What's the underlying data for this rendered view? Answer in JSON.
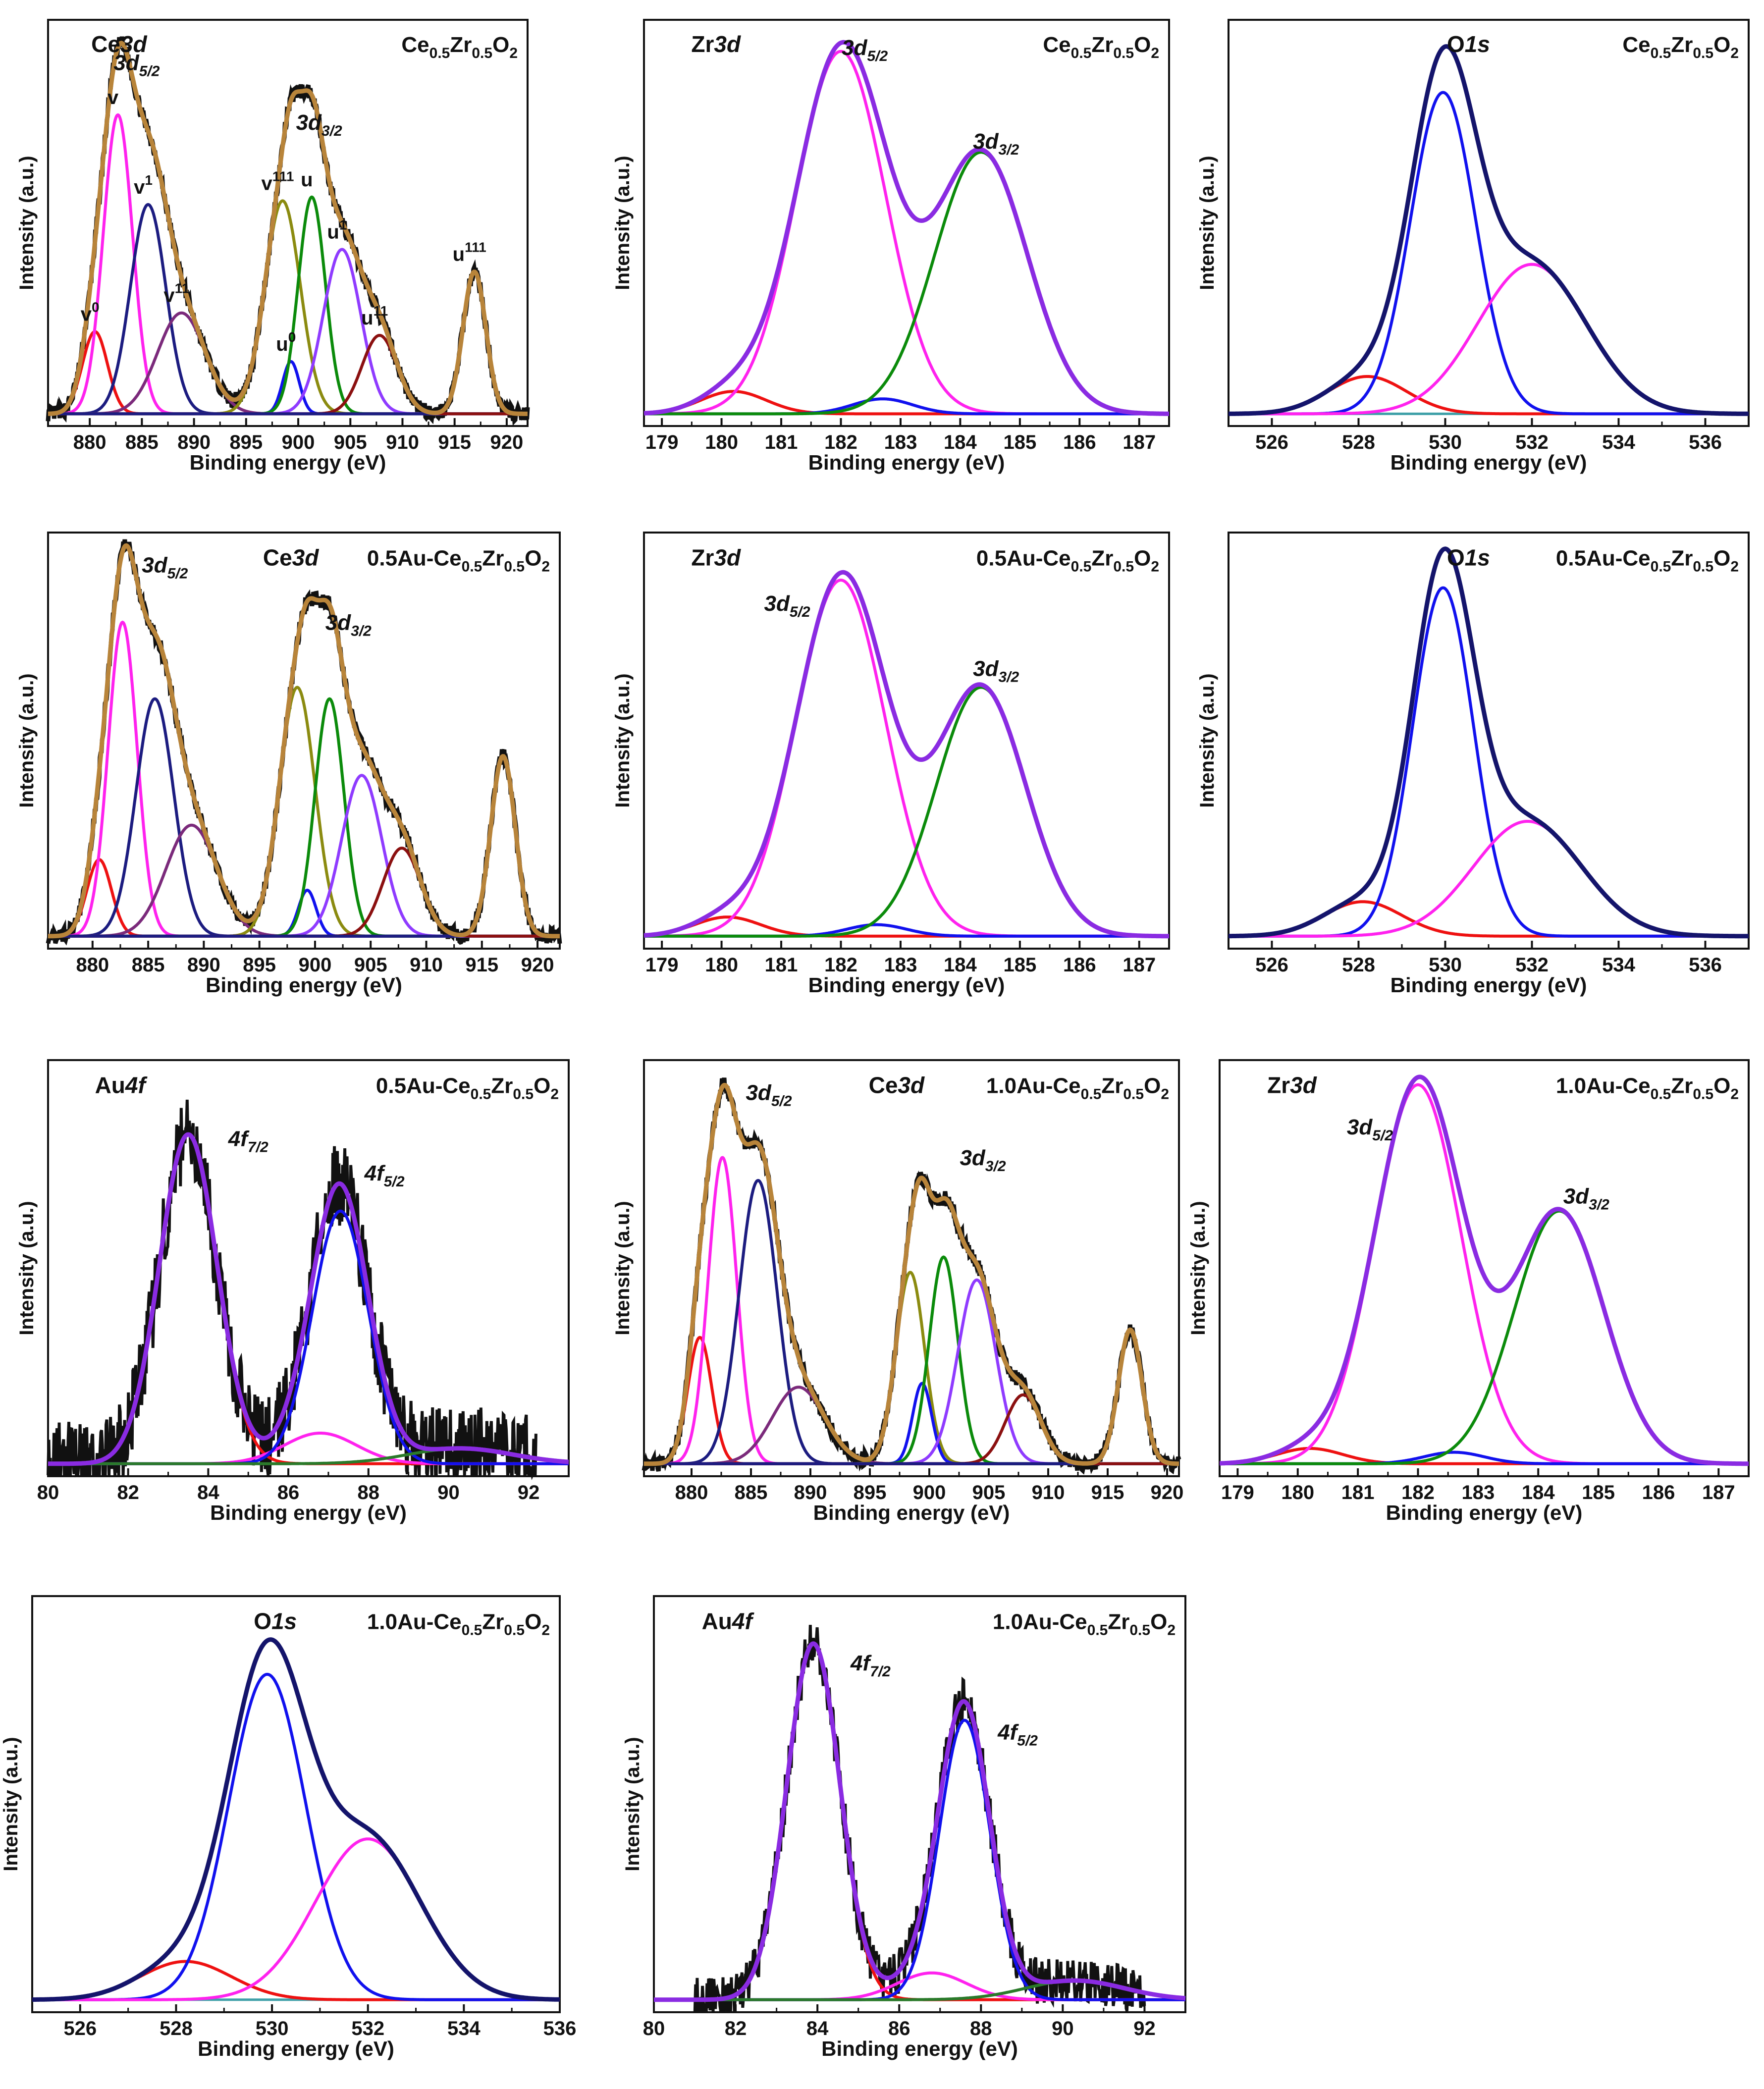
{
  "figure": {
    "type": "xps-spectra-grid",
    "x_axis_label": "Binding energy (eV)",
    "y_axis_label": "Intensity (a.u.)"
  },
  "colors": {
    "frame": "#111111",
    "raw": "#111111",
    "baseline": "#3fa0a8",
    "envelope_ce": "#b8843a",
    "envelope_zr": "#8a2be2",
    "envelope_o": "#14146b",
    "envelope_au": "#8a2be2",
    "red": "#ee1111",
    "magenta": "#ff22ee",
    "navy": "#1c1c80",
    "purple": "#7b2a7b",
    "olive": "#8b8b10",
    "blue": "#1111ee",
    "green": "#0b8b0b",
    "violet": "#8f3bff",
    "maroon": "#8b1010",
    "darkgreen": "#2a7a2a"
  },
  "chart_data": [
    {
      "id": "ce3d-ce05zr05o2",
      "type": "line",
      "region": "Ce 3d",
      "sample": [
        "Ce",
        "0.5",
        "Zr",
        "0.5",
        "O",
        "2"
      ],
      "title_parts": [
        "Ce",
        "3d"
      ],
      "xlim": [
        876,
        922
      ],
      "xticks": [
        880,
        885,
        890,
        895,
        900,
        905,
        910,
        915,
        920
      ],
      "xtick_labels": [
        "880",
        "885",
        "890",
        "895",
        "900",
        "905",
        "910",
        "915",
        "920"
      ],
      "envelope_color": "envelope_ce",
      "baseline": true,
      "noise": 0.02,
      "peaks": [
        {
          "center": 880.5,
          "height": 0.22,
          "width": 1.2,
          "color": "red",
          "label": "v",
          "sup": "0"
        },
        {
          "center": 882.7,
          "height": 0.8,
          "width": 1.4,
          "color": "magenta",
          "label": "v",
          "sup": ""
        },
        {
          "center": 885.6,
          "height": 0.56,
          "width": 1.7,
          "color": "navy",
          "label": "v",
          "sup": "1"
        },
        {
          "center": 888.8,
          "height": 0.27,
          "width": 2.3,
          "color": "purple",
          "label": "v",
          "sup": "11"
        },
        {
          "center": 898.5,
          "height": 0.57,
          "width": 1.7,
          "color": "olive",
          "label": "v",
          "sup": "111"
        },
        {
          "center": 899.3,
          "height": 0.14,
          "width": 0.8,
          "color": "blue",
          "label": "u",
          "sup": "0"
        },
        {
          "center": 901.3,
          "height": 0.58,
          "width": 1.3,
          "color": "green",
          "label": "u",
          "sup": ""
        },
        {
          "center": 904.2,
          "height": 0.44,
          "width": 1.8,
          "color": "violet",
          "label": "u",
          "sup": "1"
        },
        {
          "center": 907.8,
          "height": 0.21,
          "width": 1.7,
          "color": "maroon",
          "label": "u",
          "sup": "11"
        },
        {
          "center": 916.9,
          "height": 0.38,
          "width": 1.1,
          "color": "navy",
          "label": "u",
          "sup": "111"
        }
      ],
      "annotations": [
        {
          "text": "3d",
          "sub": "5/2",
          "x": 884.5,
          "y": 0.92
        },
        {
          "text": "3d",
          "sub": "3/2",
          "x": 902.0,
          "y": 0.76
        }
      ]
    },
    {
      "id": "zr3d-ce05zr05o2",
      "type": "line",
      "region": "Zr 3d",
      "sample": [
        "Ce",
        "0.5",
        "Zr",
        "0.5",
        "O",
        "2"
      ],
      "title_parts": [
        "Zr",
        "3d"
      ],
      "xlim": [
        178.7,
        187.5
      ],
      "xticks": [
        179,
        180,
        181,
        182,
        183,
        184,
        185,
        186,
        187
      ],
      "xtick_labels": [
        "179",
        "180",
        "181",
        "182",
        "183",
        "184",
        "185",
        "186",
        "187"
      ],
      "envelope_color": "envelope_zr",
      "baseline": false,
      "noise": 0,
      "peaks": [
        {
          "center": 180.2,
          "height": 0.06,
          "width": 0.55,
          "color": "red"
        },
        {
          "center": 182.0,
          "height": 0.97,
          "width": 0.75,
          "color": "magenta"
        },
        {
          "center": 182.7,
          "height": 0.04,
          "width": 0.5,
          "color": "blue"
        },
        {
          "center": 184.35,
          "height": 0.7,
          "width": 0.78,
          "color": "green"
        }
      ],
      "annotations": [
        {
          "text": "3d",
          "sub": "5/2",
          "x": 182.4,
          "y": 0.96
        },
        {
          "text": "3d",
          "sub": "3/2",
          "x": 184.6,
          "y": 0.71
        }
      ]
    },
    {
      "id": "o1s-ce05zr05o2",
      "type": "line",
      "region": "O 1s",
      "sample": [
        "Ce",
        "0.5",
        "Zr",
        "0.5",
        "O",
        "2"
      ],
      "title_parts": [
        "O",
        "1s"
      ],
      "xlim": [
        525,
        537
      ],
      "xticks": [
        526,
        528,
        530,
        532,
        534,
        536
      ],
      "xtick_labels": [
        "526",
        "528",
        "530",
        "532",
        "534",
        "536"
      ],
      "envelope_color": "envelope_o",
      "baseline": true,
      "noise": 0,
      "peaks": [
        {
          "center": 528.2,
          "height": 0.1,
          "width": 0.9,
          "color": "red"
        },
        {
          "center": 529.95,
          "height": 0.86,
          "width": 0.75,
          "color": "blue"
        },
        {
          "center": 532.0,
          "height": 0.4,
          "width": 1.25,
          "color": "magenta"
        }
      ],
      "annotations": []
    },
    {
      "id": "ce3d-05au",
      "type": "line",
      "region": "Ce 3d",
      "sample": [
        "0.5Au-Ce",
        "0.5",
        "Zr",
        "0.5",
        "O",
        "2"
      ],
      "title_parts": [
        "Ce",
        "3d"
      ],
      "xlim": [
        876,
        922
      ],
      "xticks": [
        880,
        885,
        890,
        895,
        900,
        905,
        910,
        915,
        920
      ],
      "xtick_labels": [
        "880",
        "885",
        "890",
        "895",
        "900",
        "905",
        "910",
        "915",
        "920"
      ],
      "envelope_color": "envelope_ce",
      "baseline": true,
      "noise": 0.02,
      "peaks": [
        {
          "center": 880.6,
          "height": 0.2,
          "width": 1.1,
          "color": "red"
        },
        {
          "center": 882.7,
          "height": 0.82,
          "width": 1.3,
          "color": "magenta"
        },
        {
          "center": 885.6,
          "height": 0.62,
          "width": 1.7,
          "color": "navy"
        },
        {
          "center": 888.9,
          "height": 0.29,
          "width": 2.3,
          "color": "purple"
        },
        {
          "center": 898.4,
          "height": 0.65,
          "width": 1.6,
          "color": "olive"
        },
        {
          "center": 899.3,
          "height": 0.12,
          "width": 0.8,
          "color": "blue"
        },
        {
          "center": 901.3,
          "height": 0.62,
          "width": 1.3,
          "color": "green"
        },
        {
          "center": 904.2,
          "height": 0.42,
          "width": 1.8,
          "color": "violet"
        },
        {
          "center": 907.8,
          "height": 0.23,
          "width": 1.7,
          "color": "maroon"
        },
        {
          "center": 916.9,
          "height": 0.47,
          "width": 1.1,
          "color": "navy"
        }
      ],
      "annotations": [
        {
          "text": "3d",
          "sub": "5/2",
          "x": 886.5,
          "y": 0.95
        },
        {
          "text": "3d",
          "sub": "3/2",
          "x": 903.0,
          "y": 0.8
        }
      ]
    },
    {
      "id": "zr3d-05au",
      "type": "line",
      "region": "Zr 3d",
      "sample": [
        "0.5Au-Ce",
        "0.5",
        "Zr",
        "0.5",
        "O",
        "2"
      ],
      "title_parts": [
        "Zr",
        "3d"
      ],
      "xlim": [
        178.7,
        187.5
      ],
      "xticks": [
        179,
        180,
        181,
        182,
        183,
        184,
        185,
        186,
        187
      ],
      "xtick_labels": [
        "179",
        "180",
        "181",
        "182",
        "183",
        "184",
        "185",
        "186",
        "187"
      ],
      "envelope_color": "envelope_zr",
      "baseline": false,
      "noise": 0,
      "peaks": [
        {
          "center": 180.1,
          "height": 0.05,
          "width": 0.55,
          "color": "red"
        },
        {
          "center": 182.0,
          "height": 0.93,
          "width": 0.75,
          "color": "magenta"
        },
        {
          "center": 182.6,
          "height": 0.03,
          "width": 0.5,
          "color": "blue"
        },
        {
          "center": 184.35,
          "height": 0.65,
          "width": 0.75,
          "color": "green"
        }
      ],
      "annotations": [
        {
          "text": "3d",
          "sub": "5/2",
          "x": 181.1,
          "y": 0.85
        },
        {
          "text": "3d",
          "sub": "3/2",
          "x": 184.6,
          "y": 0.68
        }
      ]
    },
    {
      "id": "o1s-05au",
      "type": "line",
      "region": "O 1s",
      "sample": [
        "0.5Au-Ce",
        "0.5",
        "Zr",
        "0.5",
        "O",
        "2"
      ],
      "title_parts": [
        "O",
        "1s"
      ],
      "xlim": [
        525,
        537
      ],
      "xticks": [
        526,
        528,
        530,
        532,
        534,
        536
      ],
      "xtick_labels": [
        "526",
        "528",
        "530",
        "532",
        "534",
        "536"
      ],
      "envelope_color": "envelope_o",
      "baseline": false,
      "noise": 0,
      "peaks": [
        {
          "center": 528.1,
          "height": 0.09,
          "width": 0.9,
          "color": "red"
        },
        {
          "center": 529.95,
          "height": 0.91,
          "width": 0.7,
          "color": "blue"
        },
        {
          "center": 531.9,
          "height": 0.3,
          "width": 1.25,
          "color": "magenta"
        }
      ],
      "annotations": []
    },
    {
      "id": "au4f-05au",
      "type": "line",
      "region": "Au 4f",
      "sample": [
        "0.5Au-Ce",
        "0.5",
        "Zr",
        "0.5",
        "O",
        "2"
      ],
      "title_parts": [
        "Au",
        "4f"
      ],
      "xlim": [
        80,
        93
      ],
      "xticks": [
        80,
        82,
        84,
        86,
        88,
        90,
        92
      ],
      "xtick_labels": [
        "80",
        "82",
        "84",
        "86",
        "88",
        "90",
        "92"
      ],
      "envelope_color": "envelope_au",
      "baseline": true,
      "noise": 0.11,
      "raw_range": [
        80,
        92.2
      ],
      "peaks": [
        {
          "center": 83.5,
          "height": 0.86,
          "width": 0.72,
          "color": "red"
        },
        {
          "center": 86.8,
          "height": 0.08,
          "width": 0.9,
          "color": "magenta"
        },
        {
          "center": 87.3,
          "height": 0.66,
          "width": 0.7,
          "color": "blue"
        },
        {
          "center": 90.3,
          "height": 0.04,
          "width": 1.3,
          "color": "darkgreen"
        }
      ],
      "annotations": [
        {
          "text": "4f",
          "sub": "7/2",
          "x": 85.0,
          "y": 0.83
        },
        {
          "text": "4f",
          "sub": "5/2",
          "x": 88.4,
          "y": 0.74
        }
      ]
    },
    {
      "id": "ce3d-10au",
      "type": "line",
      "region": "Ce 3d",
      "sample": [
        "1.0Au-Ce",
        "0.5",
        "Zr",
        "0.5",
        "O",
        "2"
      ],
      "title_parts": [
        "Ce",
        "3d"
      ],
      "xlim": [
        876,
        921
      ],
      "xticks": [
        880,
        885,
        890,
        895,
        900,
        905,
        910,
        915,
        920
      ],
      "xtick_labels": [
        "880",
        "885",
        "890",
        "895",
        "900",
        "905",
        "910",
        "915",
        "920"
      ],
      "envelope_color": "envelope_ce",
      "baseline": true,
      "noise": 0.02,
      "peaks": [
        {
          "center": 880.7,
          "height": 0.33,
          "width": 1.0,
          "color": "red"
        },
        {
          "center": 882.6,
          "height": 0.8,
          "width": 1.2,
          "color": "magenta"
        },
        {
          "center": 885.6,
          "height": 0.74,
          "width": 1.6,
          "color": "navy"
        },
        {
          "center": 889.0,
          "height": 0.2,
          "width": 2.2,
          "color": "purple"
        },
        {
          "center": 898.4,
          "height": 0.5,
          "width": 1.2,
          "color": "olive"
        },
        {
          "center": 899.4,
          "height": 0.21,
          "width": 0.8,
          "color": "blue"
        },
        {
          "center": 901.2,
          "height": 0.54,
          "width": 1.2,
          "color": "green"
        },
        {
          "center": 904.0,
          "height": 0.48,
          "width": 1.6,
          "color": "violet"
        },
        {
          "center": 907.9,
          "height": 0.18,
          "width": 1.5,
          "color": "maroon"
        },
        {
          "center": 916.9,
          "height": 0.35,
          "width": 1.0,
          "color": "navy"
        }
      ],
      "annotations": [
        {
          "text": "3d",
          "sub": "5/2",
          "x": 886.5,
          "y": 0.95
        },
        {
          "text": "3d",
          "sub": "3/2",
          "x": 904.5,
          "y": 0.78
        }
      ]
    },
    {
      "id": "zr3d-10au",
      "type": "line",
      "region": "Zr 3d",
      "sample": [
        "1.0Au-Ce",
        "0.5",
        "Zr",
        "0.5",
        "O",
        "2"
      ],
      "title_parts": [
        "Zr",
        "3d"
      ],
      "xlim": [
        178.7,
        187.5
      ],
      "xticks": [
        179,
        180,
        181,
        182,
        183,
        184,
        185,
        186,
        187
      ],
      "xtick_labels": [
        "179",
        "180",
        "181",
        "182",
        "183",
        "184",
        "185",
        "186",
        "187"
      ],
      "envelope_color": "envelope_zr",
      "baseline": false,
      "noise": 0,
      "peaks": [
        {
          "center": 180.2,
          "height": 0.04,
          "width": 0.55,
          "color": "red"
        },
        {
          "center": 182.0,
          "height": 0.99,
          "width": 0.72,
          "color": "magenta"
        },
        {
          "center": 182.6,
          "height": 0.03,
          "width": 0.5,
          "color": "blue"
        },
        {
          "center": 184.35,
          "height": 0.66,
          "width": 0.75,
          "color": "green"
        }
      ],
      "annotations": [
        {
          "text": "3d",
          "sub": "5/2",
          "x": 181.2,
          "y": 0.86
        },
        {
          "text": "3d",
          "sub": "3/2",
          "x": 184.8,
          "y": 0.68
        }
      ]
    },
    {
      "id": "o1s-10au",
      "type": "line",
      "region": "O 1s",
      "sample": [
        "1.0Au-Ce",
        "0.5",
        "Zr",
        "0.5",
        "O",
        "2"
      ],
      "title_parts": [
        "O",
        "1s"
      ],
      "xlim": [
        525,
        536
      ],
      "xticks": [
        526,
        528,
        530,
        532,
        534,
        536
      ],
      "xtick_labels": [
        "526",
        "528",
        "530",
        "532",
        "534",
        "536"
      ],
      "envelope_color": "envelope_o",
      "baseline": true,
      "noise": 0,
      "peaks": [
        {
          "center": 528.2,
          "height": 0.1,
          "width": 0.95,
          "color": "red"
        },
        {
          "center": 529.9,
          "height": 0.85,
          "width": 0.8,
          "color": "blue"
        },
        {
          "center": 532.0,
          "height": 0.42,
          "width": 1.1,
          "color": "magenta"
        }
      ],
      "annotations": []
    },
    {
      "id": "au4f-10au",
      "type": "line",
      "region": "Au 4f",
      "sample": [
        "1.0Au-Ce",
        "0.5",
        "Zr",
        "0.5",
        "O",
        "2"
      ],
      "title_parts": [
        "Au",
        "4f"
      ],
      "xlim": [
        80,
        93
      ],
      "xticks": [
        80,
        82,
        84,
        86,
        88,
        90,
        92
      ],
      "xtick_labels": [
        "80",
        "82",
        "84",
        "86",
        "88",
        "90",
        "92"
      ],
      "envelope_color": "envelope_au",
      "baseline": true,
      "noise": 0.06,
      "raw_range": [
        81,
        92
      ],
      "peaks": [
        {
          "center": 83.9,
          "height": 0.93,
          "width": 0.65,
          "color": "red"
        },
        {
          "center": 86.8,
          "height": 0.07,
          "width": 0.85,
          "color": "magenta"
        },
        {
          "center": 87.6,
          "height": 0.73,
          "width": 0.62,
          "color": "blue"
        },
        {
          "center": 90.3,
          "height": 0.05,
          "width": 1.2,
          "color": "darkgreen"
        }
      ],
      "annotations": [
        {
          "text": "4f",
          "sub": "7/2",
          "x": 85.3,
          "y": 0.86
        },
        {
          "text": "4f",
          "sub": "5/2",
          "x": 88.9,
          "y": 0.68
        }
      ]
    }
  ]
}
